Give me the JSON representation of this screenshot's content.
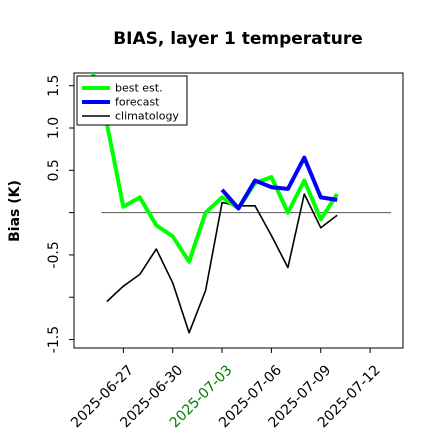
{
  "chart_data": {
    "type": "line",
    "title": "BIAS, layer 1 temperature",
    "xlabel": "",
    "ylabel": "Bias (K)",
    "ylim": [
      -1.6,
      1.65
    ],
    "xlim": [
      "2025-06-24",
      "2025-07-14"
    ],
    "grid": false,
    "legend_position": "top-left",
    "zero_line": 0,
    "yticks": [
      -1.5,
      -1.0,
      -0.5,
      0.0,
      0.5,
      1.0,
      1.5
    ],
    "ytick_labels": [
      "-1.5",
      "",
      "-0.5",
      "",
      "0.5",
      "1.0",
      "1.5"
    ],
    "xticks": [
      "2025-06-27",
      "2025-06-30",
      "2025-07-03",
      "2025-07-06",
      "2025-07-09",
      "2025-07-12"
    ],
    "xtick_colors": [
      "#000000",
      "#000000",
      "#008000",
      "#000000",
      "#000000",
      "#000000"
    ],
    "series": [
      {
        "name": "best est.",
        "color": "#00ff00",
        "width": 4,
        "x": [
          "2025-06-25",
          "2025-06-26",
          "2025-06-27",
          "2025-06-28",
          "2025-06-29",
          "2025-06-30",
          "2025-07-01",
          "2025-07-02",
          "2025-07-03",
          "2025-07-04",
          "2025-07-05",
          "2025-07-06",
          "2025-07-07",
          "2025-07-08",
          "2025-07-09",
          "2025-07-10"
        ],
        "values": [
          1.75,
          1.05,
          0.07,
          0.18,
          -0.15,
          -0.28,
          -0.58,
          0.0,
          0.18,
          0.05,
          0.35,
          0.42,
          0.0,
          0.38,
          -0.08,
          0.22
        ]
      },
      {
        "name": "forecast",
        "color": "#0000ff",
        "width": 4,
        "x": [
          "2025-07-03",
          "2025-07-04",
          "2025-07-05",
          "2025-07-06",
          "2025-07-07",
          "2025-07-08",
          "2025-07-09",
          "2025-07-10"
        ],
        "values": [
          0.27,
          0.05,
          0.38,
          0.3,
          0.28,
          0.65,
          0.18,
          0.15
        ]
      },
      {
        "name": "climatology",
        "color": "#000000",
        "width": 1.6,
        "x": [
          "2025-06-26",
          "2025-06-27",
          "2025-06-28",
          "2025-06-29",
          "2025-06-30",
          "2025-07-01",
          "2025-07-02",
          "2025-07-03",
          "2025-07-04",
          "2025-07-05",
          "2025-07-06",
          "2025-07-07",
          "2025-07-08",
          "2025-07-09",
          "2025-07-10"
        ],
        "values": [
          -1.05,
          -0.87,
          -0.73,
          -0.43,
          -0.83,
          -1.42,
          -0.92,
          0.12,
          0.08,
          0.08,
          -0.27,
          -0.65,
          0.22,
          -0.18,
          -0.03
        ]
      }
    ]
  }
}
